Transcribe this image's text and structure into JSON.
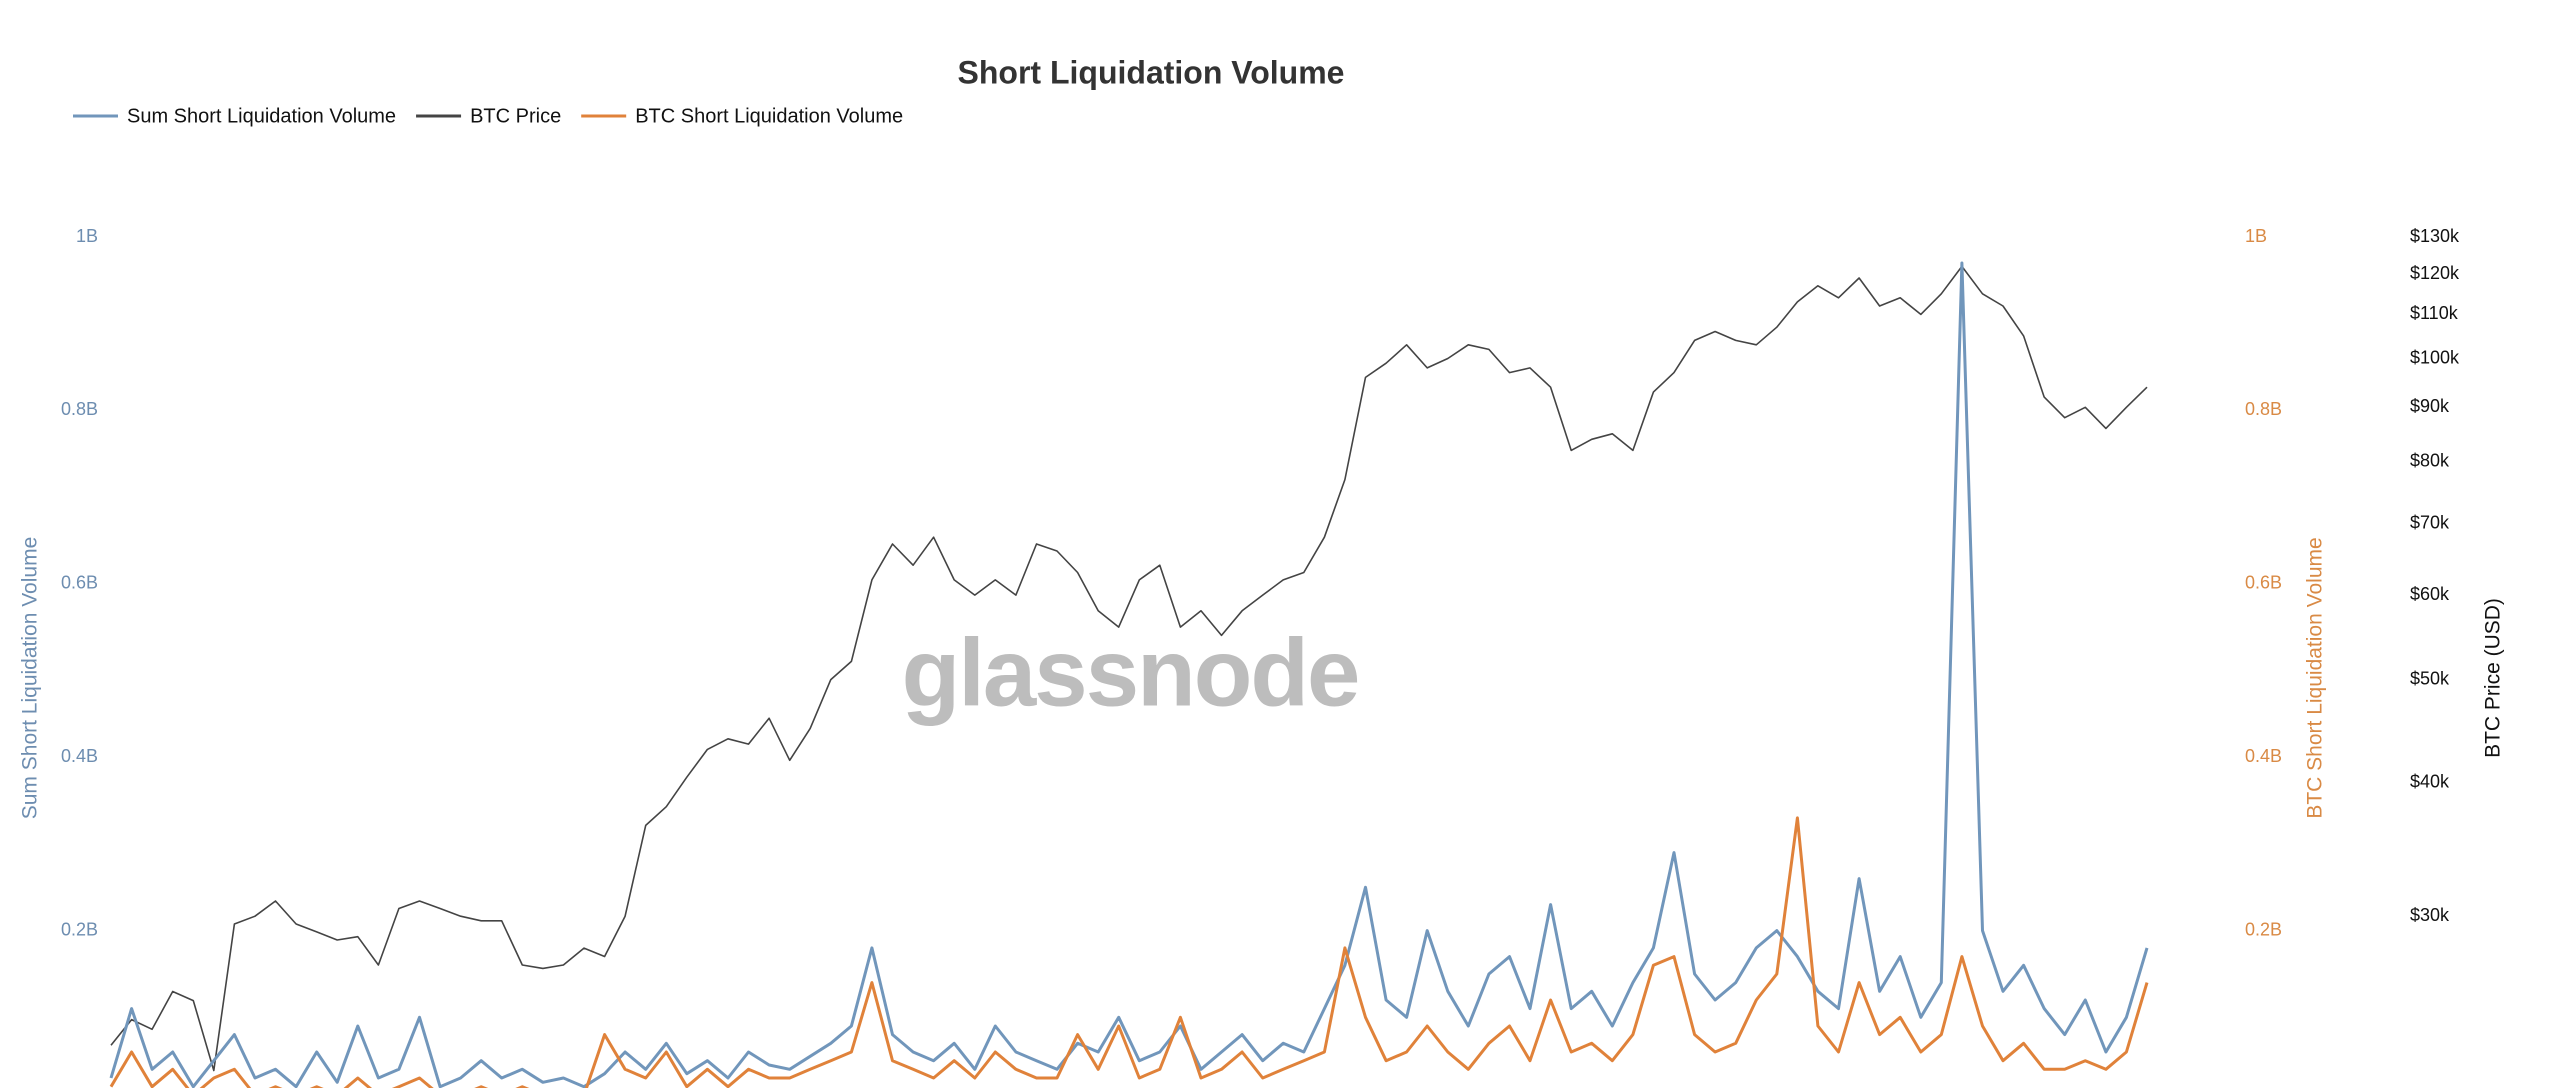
{
  "chart_data": {
    "type": "line",
    "title": "Short Liquidation Volume",
    "watermark": "glassnode",
    "ylabel": "Sum Short Liquidation Volume",
    "y2label": "BTC Short Liquidation Volume",
    "y3label": "BTC Price (USD)",
    "ylim": [
      0,
      1000000000
    ],
    "yticks": [
      {
        "value": 200000000,
        "label": "0.2B"
      },
      {
        "value": 400000000,
        "label": "0.4B"
      },
      {
        "value": 600000000,
        "label": "0.6B"
      },
      {
        "value": 800000000,
        "label": "0.8B"
      },
      {
        "value": 1000000000,
        "label": "1B"
      }
    ],
    "y2lim": [
      0,
      1000000000
    ],
    "y2ticks": [
      {
        "value": 200000000,
        "label": "0.2B"
      },
      {
        "value": 400000000,
        "label": "0.4B"
      },
      {
        "value": 600000000,
        "label": "0.6B"
      },
      {
        "value": 800000000,
        "label": "0.8B"
      },
      {
        "value": 1000000000,
        "label": "1B"
      }
    ],
    "y3lim": [
      20000,
      130000
    ],
    "y3log": true,
    "y3ticks": [
      {
        "value": 30000,
        "label": "$30k"
      },
      {
        "value": 40000,
        "label": "$40k"
      },
      {
        "value": 50000,
        "label": "$50k"
      },
      {
        "value": 60000,
        "label": "$60k"
      },
      {
        "value": 70000,
        "label": "$70k"
      },
      {
        "value": 80000,
        "label": "$80k"
      },
      {
        "value": 90000,
        "label": "$90k"
      },
      {
        "value": 100000,
        "label": "$100k"
      },
      {
        "value": 110000,
        "label": "$110k"
      },
      {
        "value": 120000,
        "label": "$120k"
      },
      {
        "value": 130000,
        "label": "$130k"
      }
    ],
    "legend": "top-left",
    "series": [
      {
        "name": "Sum Short Liquidation Volume",
        "color": "#7196bb",
        "axis": "y",
        "values": [
          30000000.0,
          110000000.0,
          40000000.0,
          60000000.0,
          20000000.0,
          50000000.0,
          80000000.0,
          30000000.0,
          40000000.0,
          20000000.0,
          60000000.0,
          25000000.0,
          90000000.0,
          30000000.0,
          40000000.0,
          100000000.0,
          20000000.0,
          30000000.0,
          50000000.0,
          30000000.0,
          40000000.0,
          25000000.0,
          30000000.0,
          20000000.0,
          35000000.0,
          60000000.0,
          40000000.0,
          70000000.0,
          35000000.0,
          50000000.0,
          30000000.0,
          60000000.0,
          45000000.0,
          40000000.0,
          55000000.0,
          70000000.0,
          90000000.0,
          180000000.0,
          80000000.0,
          60000000.0,
          50000000.0,
          70000000.0,
          40000000.0,
          90000000.0,
          60000000.0,
          50000000.0,
          40000000.0,
          70000000.0,
          60000000.0,
          100000000.0,
          50000000.0,
          60000000.0,
          90000000.0,
          40000000.0,
          60000000.0,
          80000000.0,
          50000000.0,
          70000000.0,
          60000000.0,
          110000000.0,
          160000000.0,
          250000000.0,
          120000000.0,
          100000000.0,
          200000000.0,
          130000000.0,
          90000000.0,
          150000000.0,
          170000000.0,
          110000000.0,
          230000000.0,
          110000000.0,
          130000000.0,
          90000000.0,
          140000000.0,
          180000000.0,
          290000000.0,
          150000000.0,
          120000000.0,
          140000000.0,
          180000000.0,
          200000000.0,
          170000000.0,
          130000000.0,
          110000000.0,
          260000000.0,
          130000000.0,
          170000000.0,
          100000000.0,
          140000000.0,
          970000000.0,
          200000000.0,
          130000000.0,
          160000000.0,
          110000000.0,
          80000000.0,
          120000000.0,
          60000000.0,
          100000000.0,
          180000000.0
        ]
      },
      {
        "name": "BTC Price",
        "color": "#444444",
        "axis": "y3",
        "values": [
          22700,
          24000,
          23500,
          25500,
          25000,
          21500,
          29500,
          30000,
          31000,
          29500,
          29000,
          28500,
          28700,
          27000,
          30500,
          31000,
          30500,
          30000,
          29700,
          29700,
          27000,
          26800,
          27000,
          28000,
          27500,
          30000,
          36500,
          38000,
          40500,
          43000,
          44000,
          43500,
          46000,
          42000,
          45000,
          50000,
          52000,
          62000,
          67000,
          64000,
          68000,
          62000,
          60000,
          62000,
          60000,
          67000,
          66000,
          63000,
          58000,
          56000,
          62000,
          64000,
          56000,
          58000,
          55000,
          58000,
          60000,
          62000,
          63000,
          68000,
          77000,
          96000,
          99000,
          103000,
          98000,
          100000,
          103000,
          102000,
          97000,
          98000,
          94000,
          82000,
          84000,
          85000,
          82000,
          93000,
          97000,
          104000,
          106000,
          104000,
          103000,
          107000,
          113000,
          117000,
          114000,
          119000,
          112000,
          114000,
          110000,
          115000,
          122000,
          115000,
          112000,
          105000,
          92000,
          88000,
          90000,
          86000,
          90000,
          94000
        ]
      },
      {
        "name": "BTC Short Liquidation Volume",
        "color": "#e0823a",
        "axis": "y2",
        "values": [
          20000000.0,
          60000000.0,
          20000000.0,
          40000000.0,
          10000000.0,
          30000000.0,
          40000000.0,
          10000000.0,
          20000000.0,
          10000000.0,
          20000000.0,
          10000000.0,
          30000000.0,
          10000000.0,
          20000000.0,
          30000000.0,
          10000000.0,
          10000000.0,
          20000000.0,
          10000000.0,
          20000000.0,
          10000000.0,
          10000000.0,
          10000000.0,
          80000000.0,
          40000000.0,
          30000000.0,
          60000000.0,
          20000000.0,
          40000000.0,
          20000000.0,
          40000000.0,
          30000000.0,
          30000000.0,
          40000000.0,
          50000000.0,
          60000000.0,
          140000000.0,
          50000000.0,
          40000000.0,
          30000000.0,
          50000000.0,
          30000000.0,
          60000000.0,
          40000000.0,
          30000000.0,
          30000000.0,
          80000000.0,
          40000000.0,
          90000000.0,
          30000000.0,
          40000000.0,
          100000000.0,
          30000000.0,
          40000000.0,
          60000000.0,
          30000000.0,
          40000000.0,
          50000000.0,
          60000000.0,
          180000000.0,
          100000000.0,
          50000000.0,
          60000000.0,
          90000000.0,
          60000000.0,
          40000000.0,
          70000000.0,
          90000000.0,
          50000000.0,
          120000000.0,
          60000000.0,
          70000000.0,
          50000000.0,
          80000000.0,
          160000000.0,
          170000000.0,
          80000000.0,
          60000000.0,
          70000000.0,
          120000000.0,
          150000000.0,
          330000000.0,
          90000000.0,
          60000000.0,
          140000000.0,
          80000000.0,
          100000000.0,
          60000000.0,
          80000000.0,
          170000000.0,
          90000000.0,
          50000000.0,
          70000000.0,
          40000000.0,
          40000000.0,
          50000000.0,
          40000000.0,
          60000000.0,
          140000000.0
        ]
      }
    ]
  }
}
